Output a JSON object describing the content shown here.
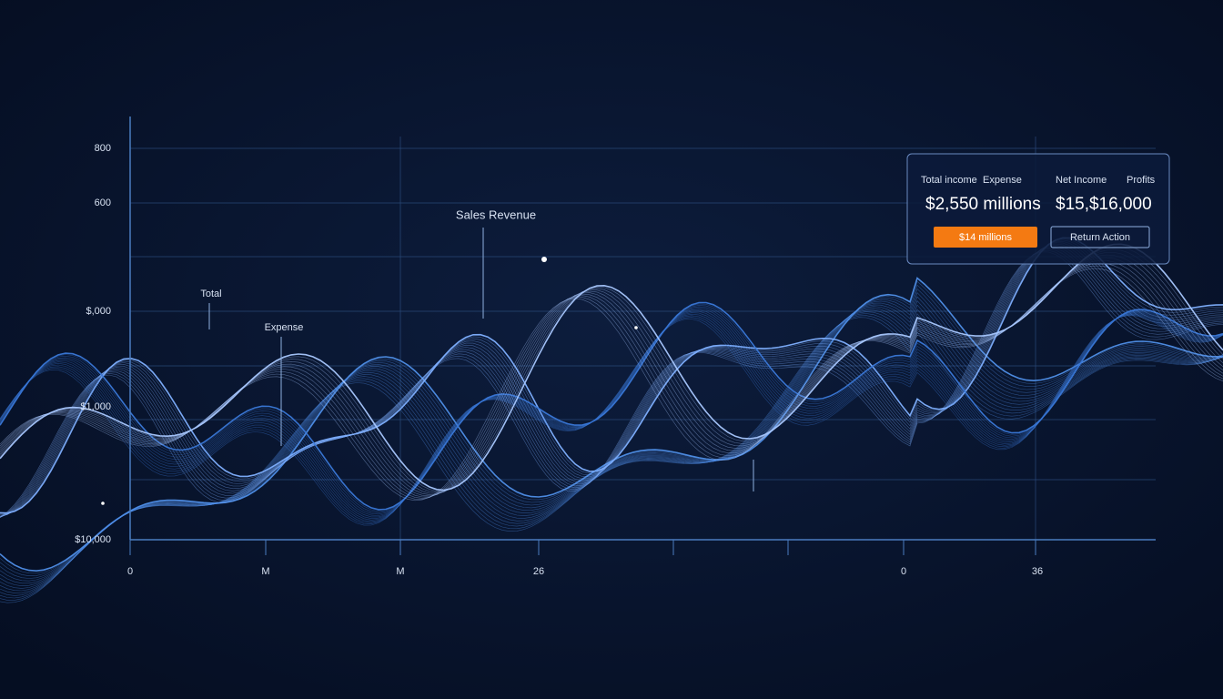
{
  "axis": {
    "y_labels": [
      "800",
      "600",
      "$,000",
      "$1,000",
      "$10,000"
    ],
    "x_labels": [
      "0",
      "M",
      "M",
      "26",
      "0",
      "36"
    ]
  },
  "annotations": [
    "Sales Revenue",
    "Total",
    "Expense"
  ],
  "panel": {
    "headers": [
      "Total income",
      "Expense",
      "Net Income",
      "Profits"
    ],
    "values": [
      "$2,550 millions",
      "$15,$16,000"
    ],
    "buttons": [
      "$14 millions",
      "Return Action"
    ]
  }
}
